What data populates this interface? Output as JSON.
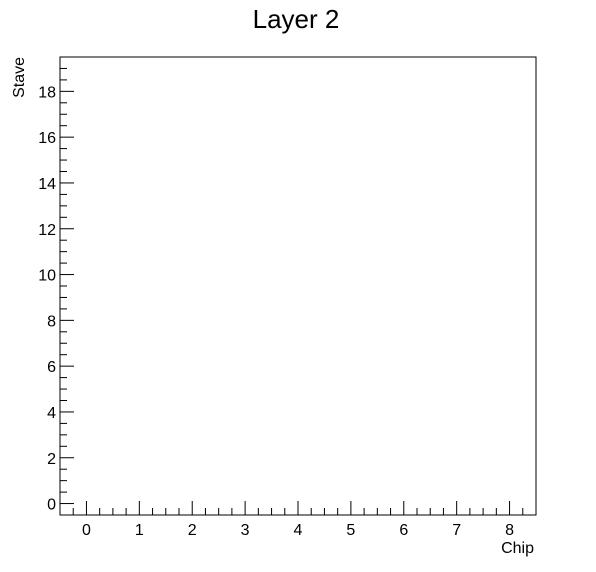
{
  "chart_data": {
    "type": "heatmap",
    "title": "Layer 2",
    "xlabel": "Chip",
    "ylabel": "Stave",
    "xlim": [
      -0.5,
      8.5
    ],
    "ylim": [
      -0.5,
      19.5
    ],
    "x_ticks": [
      0,
      1,
      2,
      3,
      4,
      5,
      6,
      7,
      8
    ],
    "y_ticks": [
      0,
      2,
      4,
      6,
      8,
      10,
      12,
      14,
      16,
      18
    ],
    "x_minor_step": 0.25,
    "y_minor_step": 0.5,
    "cells": [],
    "grid": false,
    "legend": "none"
  }
}
